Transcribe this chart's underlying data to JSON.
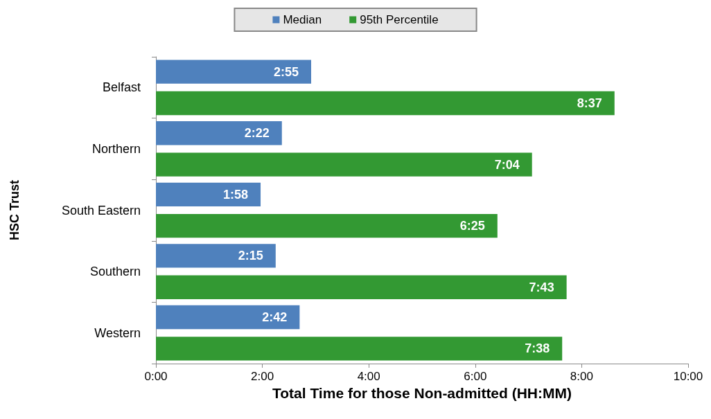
{
  "chart_data": {
    "type": "bar",
    "orientation": "horizontal",
    "xlabel": "Total Time for those Non-admitted (HH:MM)",
    "ylabel": "HSC Trust",
    "categories": [
      "Belfast",
      "Northern",
      "South Eastern",
      "Southern",
      "Western"
    ],
    "series": [
      {
        "name": "Median",
        "color": "#4f81bd",
        "values": [
          2.9167,
          2.3667,
          1.9667,
          2.25,
          2.7
        ],
        "value_labels": [
          "2:55",
          "2:22",
          "1:58",
          "2:15",
          "2:42"
        ]
      },
      {
        "name": "95th Percentile",
        "color": "#339933",
        "values": [
          8.6167,
          7.0667,
          6.4167,
          7.7167,
          7.6333
        ],
        "value_labels": [
          "8:37",
          "7:04",
          "6:25",
          "7:43",
          "7:38"
        ]
      }
    ],
    "xlim": [
      0,
      10
    ],
    "xticks": [
      {
        "value": 0,
        "label": "0:00"
      },
      {
        "value": 2,
        "label": "2:00"
      },
      {
        "value": 4,
        "label": "4:00"
      },
      {
        "value": 6,
        "label": "6:00"
      },
      {
        "value": 8,
        "label": "8:00"
      },
      {
        "value": 10,
        "label": "10:00"
      }
    ],
    "grid": false,
    "legend": "top"
  }
}
